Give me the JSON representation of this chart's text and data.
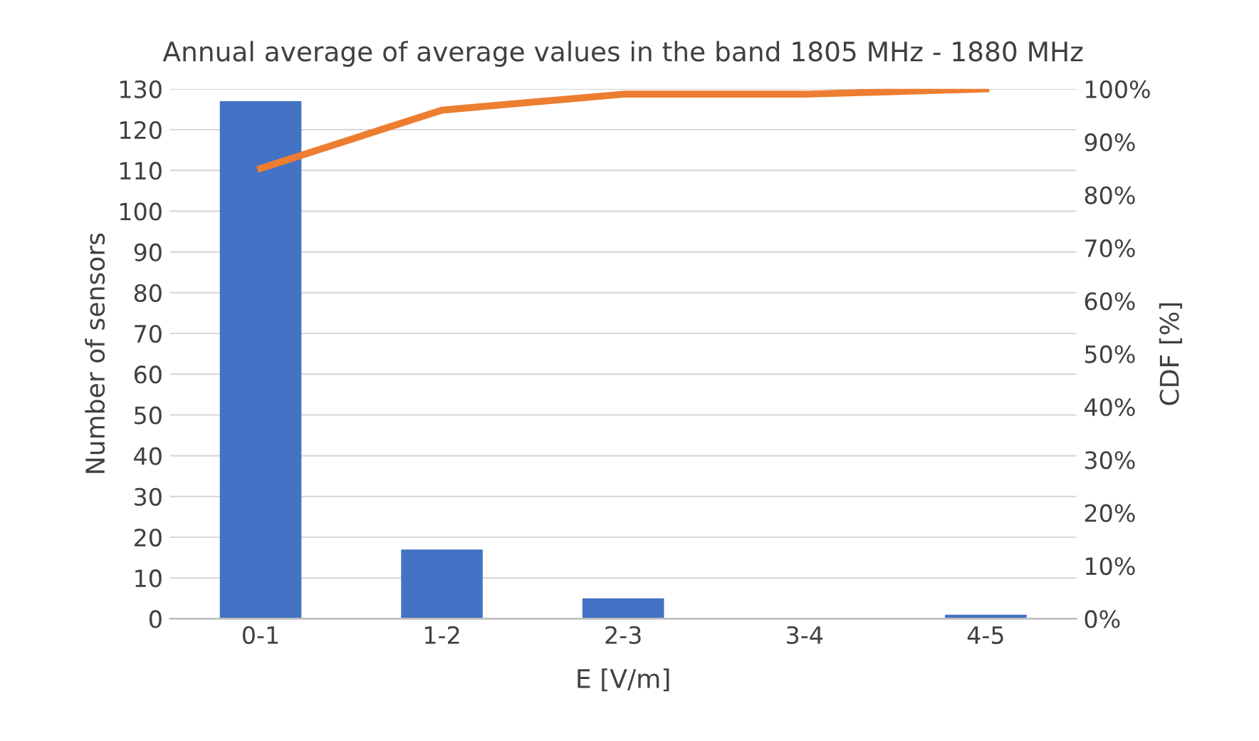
{
  "chart_data": {
    "type": "bar",
    "title": "Annual average of average values in the band 1805 MHz - 1880 MHz",
    "xlabel": "E [V/m]",
    "ylabel": "Number of sensors",
    "y2label": "CDF [%]",
    "categories": [
      "0-1",
      "1-2",
      "2-3",
      "3-4",
      "4-5"
    ],
    "series": [
      {
        "color": "#4472c4",
        "values": [
          127,
          17,
          5,
          0,
          1
        ]
      },
      {
        "type": "line",
        "axis": "y2",
        "color": "#ed7d31",
        "values": [
          85,
          96,
          99,
          99,
          100
        ]
      }
    ],
    "ylim": [
      0,
      130
    ],
    "yticks": [
      0,
      10,
      20,
      30,
      40,
      50,
      60,
      70,
      80,
      90,
      100,
      110,
      120,
      130
    ],
    "y2lim": [
      0,
      100
    ],
    "y2ticks": [
      {
        "value": 0,
        "label": "0%"
      },
      {
        "value": 10,
        "label": "10%"
      },
      {
        "value": 20,
        "label": "20%"
      },
      {
        "value": 30,
        "label": "30%"
      },
      {
        "value": 40,
        "label": "40%"
      },
      {
        "value": 50,
        "label": "50%"
      },
      {
        "value": 60,
        "label": "60%"
      },
      {
        "value": 70,
        "label": "70%"
      },
      {
        "value": 80,
        "label": "80%"
      },
      {
        "value": 90,
        "label": "90%"
      },
      {
        "value": 100,
        "label": "100%"
      }
    ],
    "grid": "y",
    "legend": false,
    "marker": "none"
  }
}
